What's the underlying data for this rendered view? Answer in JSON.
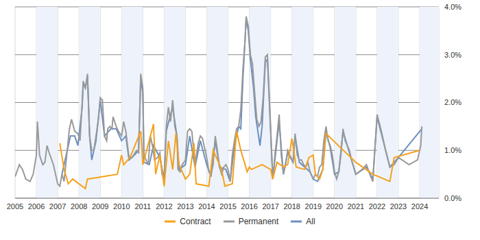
{
  "chart_data": {
    "type": "line",
    "xlim": [
      2005,
      2024.9
    ],
    "xticks": [
      2005,
      2006,
      2007,
      2008,
      2009,
      2010,
      2011,
      2012,
      2013,
      2014,
      2015,
      2016,
      2017,
      2018,
      2019,
      2020,
      2021,
      2022,
      2023,
      2024
    ],
    "ylim": [
      0,
      4
    ],
    "yticks": [
      {
        "value": 0,
        "label": "0.0%"
      },
      {
        "value": 1,
        "label": "1.0%"
      },
      {
        "value": 2,
        "label": "2.0%"
      },
      {
        "value": 3,
        "label": "3.0%"
      },
      {
        "value": 4,
        "label": "4.0%"
      }
    ],
    "grid": true,
    "legend": "bottom",
    "series": [
      {
        "name": "Contract",
        "color": "#f5a11c",
        "x": [
          2007.1,
          2007.3,
          2007.5,
          2007.7,
          2008.3,
          2008.4,
          2008.45,
          2009.8,
          2010.0,
          2010.1,
          2010.4,
          2010.9,
          2011.0,
          2011.5,
          2011.6,
          2011.8,
          2012.0,
          2012.2,
          2012.4,
          2012.55,
          2012.7,
          2013.0,
          2013.2,
          2013.4,
          2013.5,
          2014.1,
          2014.3,
          2014.5,
          2014.7,
          2014.85,
          2015.2,
          2015.4,
          2015.6,
          2015.9,
          2016.0,
          2016.1,
          2016.6,
          2017.0,
          2017.1,
          2017.3,
          2017.6,
          2017.8,
          2018.0,
          2018.2,
          2018.6,
          2018.8,
          2019.0,
          2019.1,
          2019.3,
          2019.45,
          2019.6,
          2021.0,
          2021.8,
          2022.6,
          2022.8,
          2024.0
        ],
        "values": [
          1.15,
          0.6,
          0.3,
          0.4,
          0.2,
          0.4,
          0.4,
          0.5,
          0.9,
          0.7,
          0.85,
          1.4,
          0.7,
          1.55,
          0.5,
          0.9,
          0.25,
          1.2,
          0.6,
          1.35,
          0.7,
          0.4,
          0.5,
          1.15,
          0.3,
          0.25,
          1.0,
          0.8,
          0.6,
          0.25,
          0.3,
          1.4,
          1.0,
          0.55,
          0.65,
          0.6,
          0.7,
          0.6,
          0.4,
          0.75,
          0.65,
          0.7,
          1.25,
          0.65,
          0.6,
          0.85,
          0.9,
          0.5,
          0.4,
          0.6,
          1.35,
          0.75,
          0.5,
          0.35,
          0.85,
          1.0
        ]
      },
      {
        "name": "Permanent",
        "color": "#999999",
        "x": [
          2005.0,
          2005.2,
          2005.35,
          2005.5,
          2005.7,
          2005.85,
          2006.0,
          2006.05,
          2006.15,
          2006.3,
          2006.4,
          2006.5,
          2006.6,
          2006.8,
          2006.9,
          2007.0,
          2007.1,
          2007.2,
          2007.3,
          2007.45,
          2007.55,
          2007.65,
          2007.8,
          2007.95,
          2008.05,
          2008.15,
          2008.2,
          2008.3,
          2008.4,
          2008.5,
          2008.6,
          2008.7,
          2008.8,
          2008.9,
          2009.0,
          2009.1,
          2009.2,
          2009.3,
          2009.35,
          2009.45,
          2009.55,
          2009.6,
          2009.75,
          2009.85,
          2010.0,
          2010.1,
          2010.2,
          2010.35,
          2010.5,
          2010.7,
          2010.8,
          2010.9,
          2011.0,
          2011.05,
          2011.15,
          2011.25,
          2011.35,
          2011.45,
          2011.55,
          2011.7,
          2011.8,
          2011.9,
          2012.0,
          2012.1,
          2012.2,
          2012.3,
          2012.4,
          2012.5,
          2012.6,
          2012.65,
          2012.75,
          2012.85,
          2013.0,
          2013.1,
          2013.2,
          2013.3,
          2013.45,
          2013.6,
          2013.7,
          2013.8,
          2014.0,
          2014.1,
          2014.2,
          2014.3,
          2014.4,
          2014.5,
          2014.6,
          2014.7,
          2014.8,
          2014.9,
          2015.0,
          2015.1,
          2015.2,
          2015.3,
          2015.4,
          2015.5,
          2015.6,
          2015.7,
          2015.8,
          2015.85,
          2015.95,
          2016.05,
          2016.15,
          2016.25,
          2016.35,
          2016.45,
          2016.55,
          2016.65,
          2016.75,
          2016.85,
          2016.95,
          2017.1,
          2017.2,
          2017.3,
          2017.4,
          2017.5,
          2017.6,
          2017.7,
          2017.8,
          2017.95,
          2018.05,
          2018.15,
          2018.25,
          2018.35,
          2018.45,
          2018.55,
          2018.65,
          2018.75,
          2018.85,
          2019.0,
          2019.1,
          2019.2,
          2019.3,
          2019.4,
          2019.5,
          2019.6,
          2019.7,
          2019.8,
          2019.9,
          2020.0,
          2020.1,
          2020.2,
          2020.3,
          2020.4,
          2020.5,
          2020.6,
          2020.7,
          2020.8,
          2020.9,
          2021.0,
          2021.3,
          2021.5,
          2021.7,
          2021.8,
          2022.0,
          2022.2,
          2022.4,
          2022.6,
          2022.8,
          2023.0,
          2023.5,
          2023.9,
          2024.05,
          2024.1
        ],
        "values": [
          0.45,
          0.7,
          0.6,
          0.4,
          0.35,
          0.5,
          0.9,
          1.6,
          0.9,
          0.7,
          0.75,
          1.1,
          0.95,
          0.7,
          0.5,
          0.3,
          0.25,
          0.5,
          0.35,
          1.0,
          1.45,
          1.65,
          1.4,
          1.35,
          1.2,
          2.0,
          2.45,
          2.3,
          2.6,
          1.3,
          1.0,
          1.0,
          1.3,
          1.6,
          2.1,
          2.05,
          1.3,
          1.2,
          1.45,
          1.5,
          1.45,
          1.7,
          1.5,
          1.4,
          1.3,
          1.6,
          1.4,
          0.85,
          0.85,
          1.0,
          0.95,
          2.6,
          2.3,
          0.9,
          0.8,
          0.7,
          1.3,
          1.1,
          0.8,
          0.85,
          0.95,
          0.5,
          0.4,
          1.5,
          1.9,
          1.6,
          2.05,
          1.5,
          1.3,
          0.6,
          0.55,
          0.7,
          0.8,
          1.4,
          1.45,
          1.4,
          0.7,
          1.15,
          1.3,
          1.25,
          0.85,
          0.55,
          0.5,
          0.7,
          1.3,
          1.0,
          0.65,
          0.5,
          0.65,
          0.7,
          0.6,
          0.35,
          0.9,
          1.2,
          1.45,
          1.5,
          1.85,
          2.7,
          3.3,
          3.8,
          3.6,
          3.0,
          2.8,
          2.2,
          1.65,
          1.5,
          1.6,
          2.1,
          2.95,
          3.0,
          2.0,
          0.4,
          0.9,
          1.3,
          1.75,
          0.9,
          0.5,
          0.7,
          1.0,
          0.85,
          0.75,
          1.35,
          0.9,
          0.8,
          0.8,
          0.7,
          0.65,
          0.75,
          0.55,
          0.4,
          0.5,
          0.45,
          0.65,
          0.7,
          1.2,
          1.5,
          1.2,
          1.1,
          0.9,
          0.55,
          0.4,
          0.55,
          0.9,
          1.45,
          1.2,
          1.1,
          1.0,
          0.8,
          0.65,
          0.5,
          0.6,
          0.7,
          0.45,
          0.35,
          1.75,
          1.4,
          1.0,
          0.65,
          0.7,
          0.85,
          0.7,
          0.8,
          1.1,
          1.5
        ]
      },
      {
        "name": "All",
        "color": "#6b8fc0",
        "x": [
          2007.2,
          2007.45,
          2007.6,
          2007.8,
          2007.95,
          2008.15,
          2008.2,
          2008.3,
          2008.4,
          2008.5,
          2008.6,
          2008.8,
          2009.0,
          2009.2,
          2009.5,
          2009.75,
          2010.0,
          2010.2,
          2010.35,
          2010.6,
          2010.8,
          2010.9,
          2011.0,
          2011.05,
          2011.3,
          2011.5,
          2011.8,
          2012.0,
          2012.1,
          2012.3,
          2012.4,
          2012.6,
          2012.7,
          2013.0,
          2013.2,
          2013.45,
          2013.7,
          2014.0,
          2014.2,
          2014.4,
          2014.6,
          2014.9,
          2015.1,
          2015.3,
          2015.5,
          2015.6,
          2015.7,
          2015.85,
          2015.95,
          2016.05,
          2016.2,
          2016.3,
          2016.4,
          2016.5,
          2016.6,
          2016.75,
          2016.85,
          2016.95,
          2017.1,
          2017.3,
          2017.4,
          2017.6,
          2017.8,
          2018.05,
          2018.15,
          2018.35,
          2018.6,
          2018.85,
          2019.0,
          2019.2,
          2019.3,
          2019.45,
          2019.6,
          2019.8,
          2020.0,
          2020.2,
          2020.4,
          2020.7,
          2021.0,
          2021.5,
          2021.8,
          2022.0,
          2022.6,
          2023.0,
          2024.1
        ],
        "values": [
          0.5,
          1.0,
          1.3,
          1.3,
          1.1,
          1.9,
          2.4,
          2.3,
          2.55,
          1.3,
          0.8,
          1.2,
          2.05,
          1.3,
          1.45,
          1.45,
          1.2,
          1.3,
          0.8,
          0.9,
          1.0,
          2.5,
          2.2,
          0.75,
          0.7,
          1.1,
          0.85,
          0.4,
          1.4,
          1.75,
          1.9,
          1.3,
          0.6,
          0.7,
          1.3,
          0.65,
          1.2,
          0.7,
          0.45,
          1.2,
          0.65,
          0.6,
          0.35,
          1.1,
          1.5,
          1.45,
          2.5,
          3.75,
          3.5,
          2.9,
          2.3,
          1.7,
          1.4,
          1.1,
          1.5,
          2.85,
          2.9,
          1.9,
          0.4,
          1.2,
          1.6,
          0.5,
          0.95,
          0.75,
          1.3,
          0.75,
          0.65,
          0.55,
          0.4,
          0.35,
          0.45,
          0.6,
          1.4,
          1.05,
          0.5,
          0.55,
          1.4,
          0.95,
          0.5,
          0.65,
          0.4,
          1.7,
          0.65,
          0.85,
          1.45
        ]
      }
    ]
  }
}
